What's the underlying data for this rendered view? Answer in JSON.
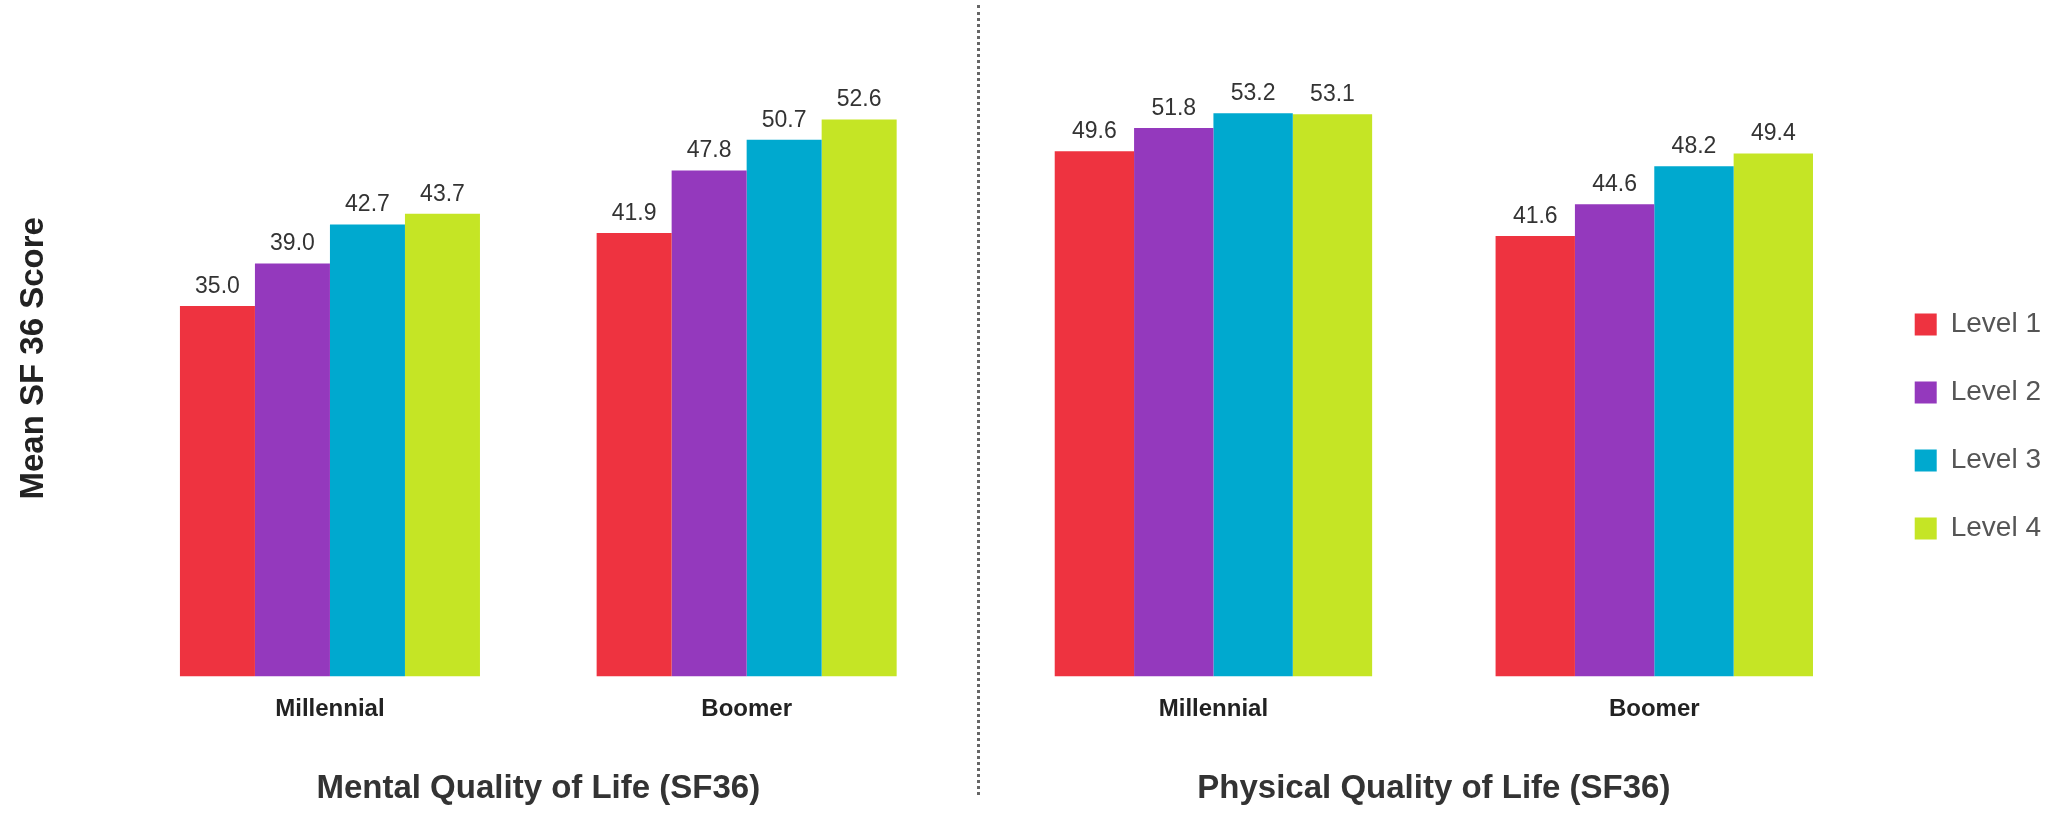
{
  "chart_data": [
    {
      "type": "bar",
      "categories": [
        "Millennial",
        "Boomer"
      ],
      "xlabel": "Mental Quality of Life (SF36)",
      "ylabel": "Mean SF 36 Score",
      "series": [
        {
          "color": "#ee3340",
          "values": [
            35.0,
            41.9
          ],
          "value_labels": [
            "35.0",
            "41.9"
          ]
        },
        {
          "color": "#9439bd",
          "values": [
            39.0,
            47.8
          ],
          "value_labels": [
            "39.0",
            "47.8"
          ]
        },
        {
          "color": "#00a9cf",
          "values": [
            42.7,
            50.7
          ],
          "value_labels": [
            "42.7",
            "50.7"
          ]
        },
        {
          "color": "#c5e525",
          "values": [
            43.7,
            52.6
          ],
          "value_labels": [
            "43.7",
            "52.6"
          ]
        }
      ]
    },
    {
      "type": "bar",
      "categories": [
        "Millennial",
        "Boomer"
      ],
      "xlabel": "Physical Quality of Life (SF36)",
      "legend": "right",
      "series": [
        {
          "name": "Level 1",
          "color": "#ee3340",
          "values": [
            49.6,
            41.6
          ],
          "value_labels": [
            "49.6",
            "41.6"
          ]
        },
        {
          "name": "Level 2",
          "color": "#9439bd",
          "values": [
            51.8,
            44.6
          ],
          "value_labels": [
            "51.8",
            "44.6"
          ]
        },
        {
          "name": "Level 3",
          "color": "#00a9cf",
          "values": [
            53.2,
            48.2
          ],
          "value_labels": [
            "53.2",
            "48.2"
          ]
        },
        {
          "name": "Level 4",
          "color": "#c5e525",
          "values": [
            53.1,
            49.4
          ],
          "value_labels": [
            "53.1",
            "49.4"
          ]
        }
      ]
    }
  ]
}
